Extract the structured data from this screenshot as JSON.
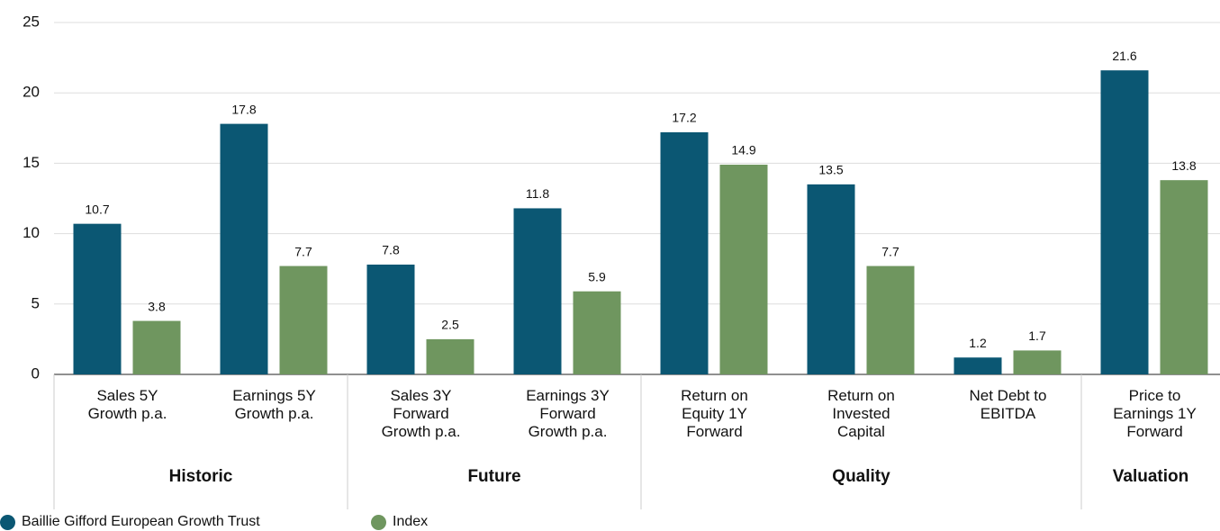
{
  "chart_data": {
    "type": "bar",
    "categories": [
      "Sales 5Y Growth p.a.",
      "Earnings 5Y Growth p.a.",
      "Sales 3Y Forward Growth p.a.",
      "Earnings 3Y Forward Growth p.a.",
      "Return on Equity 1Y Forward",
      "Return on Invested Capital",
      "Net Debt to EBITDA",
      "Price to Earnings 1Y Forward"
    ],
    "category_groups": [
      "Historic",
      "Historic",
      "Future",
      "Future",
      "Quality",
      "Quality",
      "Quality",
      "Valuation"
    ],
    "series": [
      {
        "name": "Baillie Gifford European Growth Trust",
        "color": "#0b5773",
        "values": [
          10.7,
          17.8,
          7.8,
          11.8,
          17.2,
          13.5,
          1.2,
          21.6
        ]
      },
      {
        "name": "Index",
        "color": "#6f965f",
        "values": [
          3.8,
          7.7,
          2.5,
          5.9,
          14.9,
          7.7,
          1.7,
          13.8
        ]
      }
    ],
    "ylim": [
      0,
      25
    ],
    "yticks": [
      0,
      5,
      10,
      15,
      20,
      25
    ],
    "grid": true,
    "legend": "bottom-left"
  }
}
